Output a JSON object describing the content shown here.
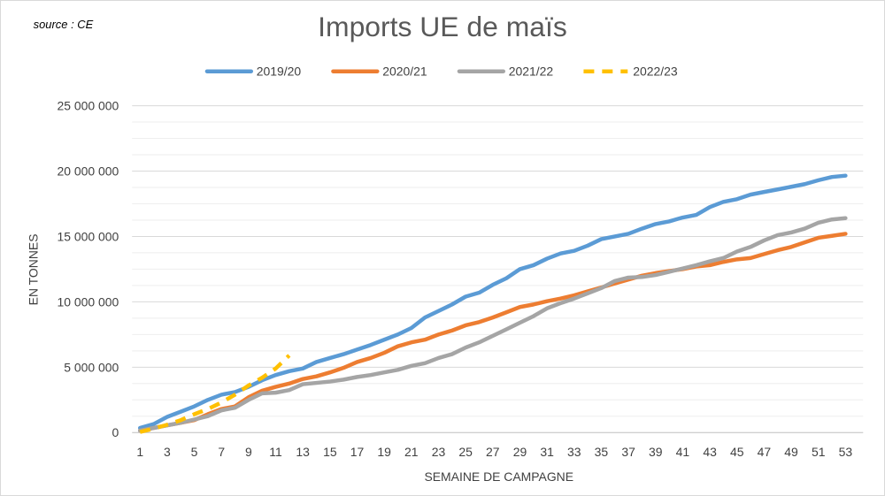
{
  "source": "source : CE",
  "chart_data": {
    "type": "line",
    "title": "Imports UE de maïs",
    "xlabel": "SEMAINE DE CAMPAGNE",
    "ylabel": "EN TONNES",
    "ylim": [
      0,
      25000000
    ],
    "xlim": [
      1,
      53
    ],
    "y_ticks": [
      0,
      5000000,
      10000000,
      15000000,
      20000000,
      25000000
    ],
    "y_tick_labels": [
      "0",
      "5 000 000",
      "10 000 000",
      "15 000 000",
      "20 000 000",
      "25 000 000"
    ],
    "x_ticks": [
      1,
      3,
      5,
      7,
      9,
      11,
      13,
      15,
      17,
      19,
      21,
      23,
      25,
      27,
      29,
      31,
      33,
      35,
      37,
      39,
      41,
      43,
      45,
      47,
      49,
      51,
      53
    ],
    "x_tick_labels": [
      "1",
      "3",
      "5",
      "7",
      "9",
      "11",
      "13",
      "15",
      "17",
      "19",
      "21",
      "23",
      "25",
      "27",
      "29",
      "31",
      "33",
      "35",
      "37",
      "39",
      "41",
      "43",
      "45",
      "47",
      "49",
      "51",
      "53"
    ],
    "legend_position": "top-center",
    "grid": true,
    "series": [
      {
        "name": "2019/20",
        "color": "#5b9bd5",
        "dashed": false,
        "values": [
          350000,
          650000,
          1200000,
          1600000,
          2000000,
          2500000,
          2900000,
          3100000,
          3500000,
          4000000,
          4400000,
          4700000,
          4900000,
          5400000,
          5700000,
          6000000,
          6350000,
          6700000,
          7100000,
          7500000,
          8000000,
          8800000,
          9300000,
          9800000,
          10400000,
          10700000,
          11300000,
          11800000,
          12500000,
          12800000,
          13300000,
          13700000,
          13900000,
          14300000,
          14800000,
          15000000,
          15200000,
          15600000,
          15950000,
          16150000,
          16450000,
          16650000,
          17250000,
          17650000,
          17850000,
          18200000,
          18400000,
          18600000,
          18800000,
          19000000,
          19300000,
          19550000,
          19650000
        ]
      },
      {
        "name": "2020/21",
        "color": "#ed7d31",
        "dashed": false,
        "values": [
          150000,
          350000,
          550000,
          750000,
          950000,
          1400000,
          1800000,
          2000000,
          2700000,
          3200000,
          3500000,
          3750000,
          4100000,
          4300000,
          4600000,
          4950000,
          5400000,
          5700000,
          6100000,
          6600000,
          6900000,
          7100000,
          7500000,
          7800000,
          8200000,
          8450000,
          8800000,
          9200000,
          9600000,
          9800000,
          10050000,
          10250000,
          10500000,
          10800000,
          11100000,
          11400000,
          11700000,
          12000000,
          12200000,
          12350000,
          12500000,
          12700000,
          12800000,
          13050000,
          13250000,
          13350000,
          13650000,
          13950000,
          14200000,
          14550000,
          14900000,
          15050000,
          15200000
        ]
      },
      {
        "name": "2021/22",
        "color": "#a5a5a5",
        "dashed": false,
        "values": [
          150000,
          350000,
          550000,
          750000,
          1000000,
          1250000,
          1700000,
          1900000,
          2500000,
          3000000,
          3050000,
          3250000,
          3700000,
          3800000,
          3900000,
          4050000,
          4250000,
          4400000,
          4600000,
          4800000,
          5100000,
          5300000,
          5700000,
          6000000,
          6500000,
          6900000,
          7400000,
          7900000,
          8400000,
          8900000,
          9500000,
          9900000,
          10250000,
          10650000,
          11050000,
          11600000,
          11850000,
          11900000,
          12050000,
          12300000,
          12550000,
          12800000,
          13100000,
          13350000,
          13850000,
          14200000,
          14700000,
          15100000,
          15300000,
          15600000,
          16050000,
          16300000,
          16400000
        ]
      },
      {
        "name": "2022/23",
        "color": "#ffc000",
        "dashed": true,
        "values": [
          50000,
          300000,
          600000,
          950000,
          1400000,
          1800000,
          2300000,
          2900000,
          3600000,
          4200000,
          4900000,
          5900000
        ]
      }
    ]
  }
}
